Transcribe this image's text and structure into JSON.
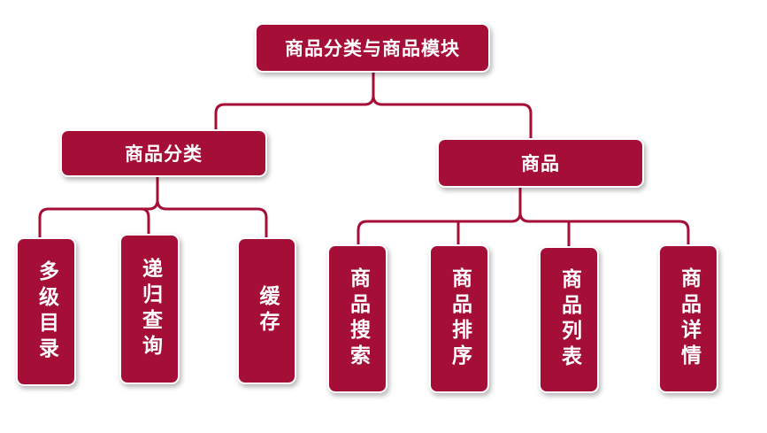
{
  "root": "商品分类与商品模块",
  "category": {
    "title": "商品分类",
    "children": [
      "多级目录",
      "递归查询",
      "缓存"
    ]
  },
  "product": {
    "title": "商品",
    "children": [
      "商品搜索",
      "商品排序",
      "商品列表",
      "商品详情"
    ]
  },
  "colors": {
    "box_fill": "#a50f37",
    "box_text": "#ffffff",
    "connector": "#a50f37"
  }
}
